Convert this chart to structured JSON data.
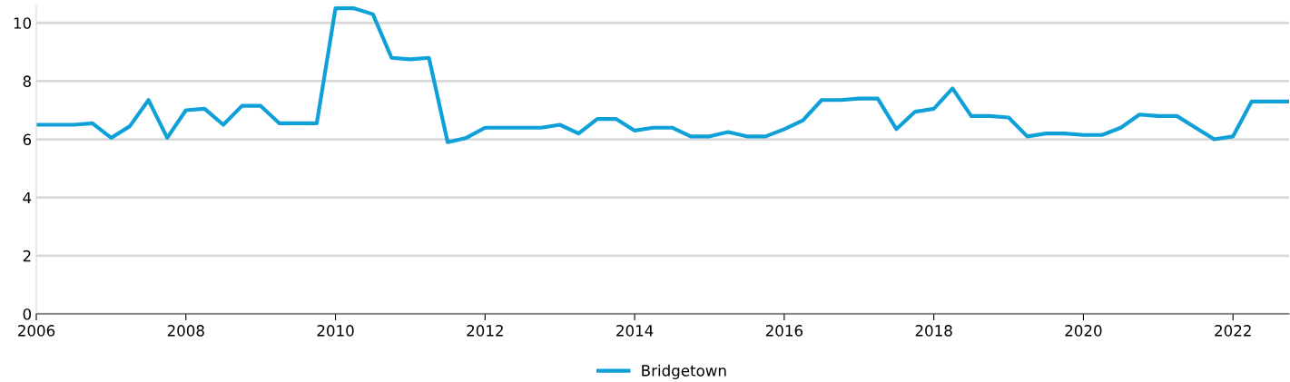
{
  "chart_data": {
    "type": "line",
    "x": [
      2006,
      2006.25,
      2006.5,
      2006.75,
      2007,
      2007.25,
      2007.5,
      2007.75,
      2008,
      2008.25,
      2008.5,
      2008.75,
      2009,
      2009.25,
      2009.5,
      2009.75,
      2010,
      2010.25,
      2010.5,
      2010.75,
      2011,
      2011.25,
      2011.5,
      2011.75,
      2012,
      2012.25,
      2012.5,
      2012.75,
      2013,
      2013.25,
      2013.5,
      2013.75,
      2014,
      2014.25,
      2014.5,
      2014.75,
      2015,
      2015.25,
      2015.5,
      2015.75,
      2016,
      2016.25,
      2016.5,
      2016.75,
      2017,
      2017.25,
      2017.5,
      2017.75,
      2018,
      2018.25,
      2018.5,
      2018.75,
      2019,
      2019.25,
      2019.5,
      2019.75,
      2020,
      2020.25,
      2020.5,
      2020.75,
      2021,
      2021.25,
      2021.5,
      2021.75,
      2022,
      2022.25,
      2022.5,
      2022.75
    ],
    "series": [
      {
        "name": "Bridgetown",
        "color": "#0fa0d8",
        "values": [
          6.5,
          6.5,
          6.5,
          6.55,
          6.05,
          6.45,
          7.35,
          6.05,
          7.0,
          7.05,
          6.5,
          7.15,
          7.15,
          6.55,
          6.55,
          6.55,
          10.5,
          10.5,
          10.3,
          8.8,
          8.75,
          8.8,
          5.9,
          6.05,
          6.4,
          6.4,
          6.4,
          6.4,
          6.5,
          6.2,
          6.7,
          6.7,
          6.3,
          6.4,
          6.4,
          6.1,
          6.1,
          6.25,
          6.1,
          6.1,
          6.35,
          6.65,
          7.35,
          7.35,
          7.4,
          7.4,
          6.35,
          6.95,
          7.05,
          7.75,
          6.8,
          6.8,
          6.75,
          6.1,
          6.2,
          6.2,
          6.15,
          6.15,
          6.4,
          6.85,
          6.8,
          6.8,
          6.4,
          6.0,
          6.1,
          7.3,
          7.3,
          7.3
        ]
      }
    ],
    "xlim": [
      2006,
      2022.75
    ],
    "xticks": [
      2006,
      2008,
      2010,
      2012,
      2014,
      2016,
      2018,
      2020,
      2022
    ],
    "ylim": [
      0,
      10.6
    ],
    "yticks": [
      0,
      2,
      4,
      6,
      8,
      10
    ],
    "grid": "y",
    "legend": "bottom",
    "marker": "none",
    "line_style": "solid"
  }
}
